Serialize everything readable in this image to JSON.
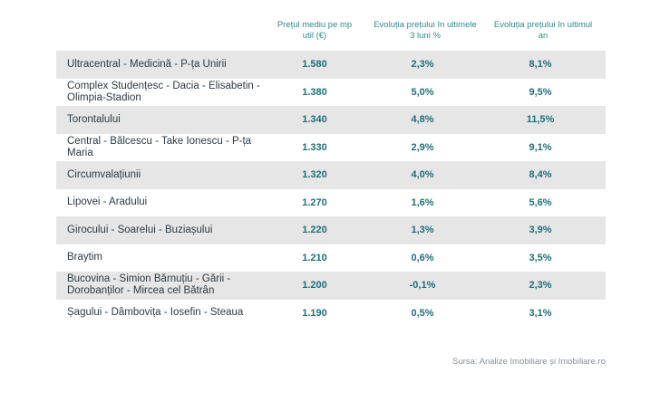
{
  "headers": {
    "col1": "Prețul mediu pe mp util (€)",
    "col2": "Evoluția prețului în ultimele 3 luni %",
    "col3": "Evoluția prețului în ultimul an"
  },
  "rows": [
    {
      "zone": "Ultracentral - Medicină - P-ța Unirii",
      "price": "1.580",
      "change_3m": "2,3%",
      "change_1y": "8,1%"
    },
    {
      "zone": "Complex Studențesc - Dacia - Elisabetin - Olimpia-Stadion",
      "price": "1.380",
      "change_3m": "5,0%",
      "change_1y": "9,5%"
    },
    {
      "zone": "Torontalului",
      "price": "1.340",
      "change_3m": "4,8%",
      "change_1y": "11,5%"
    },
    {
      "zone": "Central - Bălcescu - Take Ionescu - P-ța Maria",
      "price": "1.330",
      "change_3m": "2,9%",
      "change_1y": "9,1%"
    },
    {
      "zone": "Circumvalațiunii",
      "price": "1.320",
      "change_3m": "4,0%",
      "change_1y": "8,4%"
    },
    {
      "zone": "Lipovei - Aradului",
      "price": "1.270",
      "change_3m": "1,6%",
      "change_1y": "5,6%"
    },
    {
      "zone": "Girocului - Soarelui - Buziașului",
      "price": "1.220",
      "change_3m": "1,3%",
      "change_1y": "3,9%"
    },
    {
      "zone": "Braytim",
      "price": "1.210",
      "change_3m": "0,6%",
      "change_1y": "3,5%"
    },
    {
      "zone": "Bucovina - Simion Bărnuțiu - Gării - Dorobanților - Mircea cel Bătrân",
      "price": "1.200",
      "change_3m": "-0,1%",
      "change_1y": "2,3%"
    },
    {
      "zone": "Șagului - Dâmbovița - Iosefin - Steaua",
      "price": "1.190",
      "change_3m": "0,5%",
      "change_1y": "3,1%"
    }
  ],
  "source": "Sursa: Analize Imobiliare și Imobiliare.ro"
}
